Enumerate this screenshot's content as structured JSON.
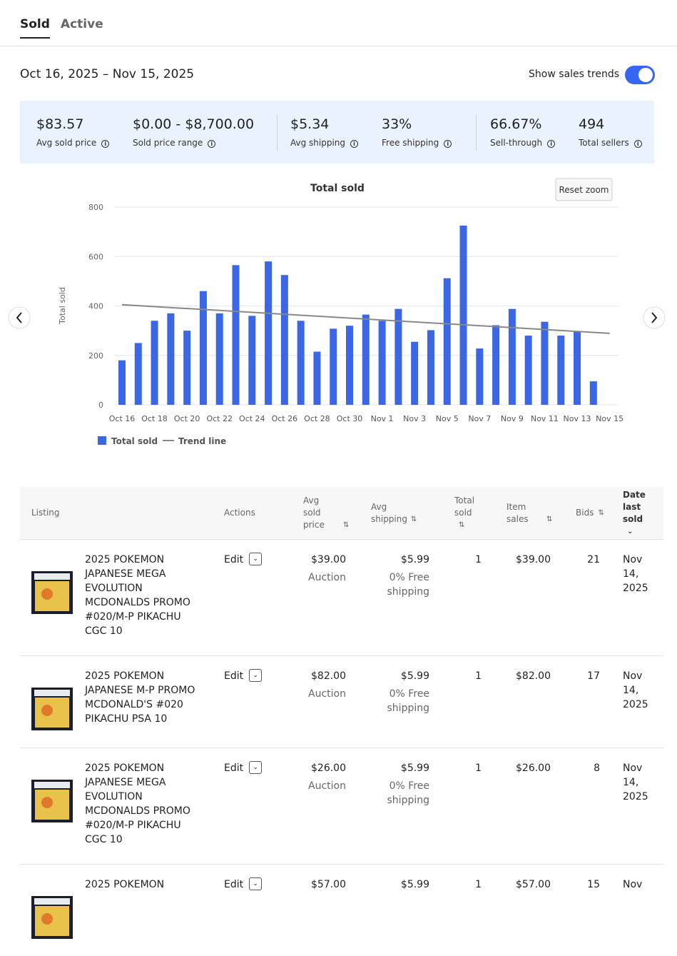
{
  "tabs": [
    "Sold",
    "Active"
  ],
  "date_range": "Oct 16, 2025 – Nov 15, 2025",
  "toggle_label": "Show sales trends",
  "stats": [
    {
      "value": "$83.57",
      "label": "Avg sold price"
    },
    {
      "value": "$0.00 - $8,700.00",
      "label": "Sold price range"
    },
    {
      "value": "$5.34",
      "label": "Avg shipping"
    },
    {
      "value": "33%",
      "label": "Free shipping"
    },
    {
      "value": "66.67%",
      "label": "Sell-through"
    },
    {
      "value": "494",
      "label": "Total sellers"
    }
  ],
  "chart_data": {
    "type": "bar",
    "title": "Total sold",
    "y_label": "Total sold",
    "button": "Reset zoom",
    "categories": [
      "Oct 16",
      null,
      "Oct 18",
      null,
      "Oct 20",
      null,
      "Oct 22",
      null,
      "Oct 24",
      null,
      "Oct 26",
      null,
      "Oct 28",
      null,
      "Oct 30",
      null,
      "Nov 1",
      null,
      "Nov 3",
      null,
      "Nov 5",
      null,
      "Nov 7",
      null,
      "Nov 9",
      null,
      "Nov 11",
      null,
      "Nov 13",
      null,
      "Nov 15"
    ],
    "series": [
      {
        "name": "Total sold",
        "color": "#3b66e6",
        "values": [
          180,
          250,
          340,
          370,
          300,
          460,
          370,
          565,
          360,
          580,
          525,
          340,
          215,
          308,
          320,
          365,
          340,
          388,
          255,
          302,
          512,
          725,
          228,
          322,
          388,
          280,
          336,
          280,
          295,
          95,
          null
        ]
      }
    ],
    "trend_line": {
      "name": "Trend line",
      "color": "#888888",
      "from": 405,
      "to": 289
    },
    "ylim": [
      0,
      800
    ],
    "yticks": [
      0,
      200,
      400,
      600,
      800
    ],
    "grid": true,
    "legend": "bottom"
  },
  "table": {
    "headers": [
      "Listing",
      "Actions",
      "Avg sold price",
      "Avg shipping",
      "Total sold",
      "Item sales",
      "Bids",
      "Date last sold"
    ],
    "rows": [
      {
        "title": "2025 POKEMON JAPANESE MEGA EVOLUTION MCDONALDS PROMO #020/M-P PIKACHU CGC 10",
        "action": "Edit",
        "price": "$39.00",
        "format": "Auction",
        "shipping": "$5.99",
        "shipping_note": "0% Free shipping",
        "total_sold": "1",
        "item_sales": "$39.00",
        "bids": "21",
        "date": "Nov 14, 2025"
      },
      {
        "title": "2025 POKEMON JAPANESE M-P PROMO MCDONALD'S #020 PIKACHU PSA 10",
        "action": "Edit",
        "price": "$82.00",
        "format": "Auction",
        "shipping": "$5.99",
        "shipping_note": "0% Free shipping",
        "total_sold": "1",
        "item_sales": "$82.00",
        "bids": "17",
        "date": "Nov 14, 2025"
      },
      {
        "title": "2025 POKEMON JAPANESE MEGA EVOLUTION MCDONALDS PROMO #020/M-P PIKACHU CGC 10",
        "action": "Edit",
        "price": "$26.00",
        "format": "Auction",
        "shipping": "$5.99",
        "shipping_note": "0% Free shipping",
        "total_sold": "1",
        "item_sales": "$26.00",
        "bids": "8",
        "date": "Nov 14, 2025"
      },
      {
        "title": "2025 POKEMON",
        "action": "Edit",
        "price": "$57.00",
        "format": null,
        "shipping": "$5.99",
        "shipping_note": null,
        "total_sold": "1",
        "item_sales": "$57.00",
        "bids": "15",
        "date": "Nov"
      }
    ]
  }
}
